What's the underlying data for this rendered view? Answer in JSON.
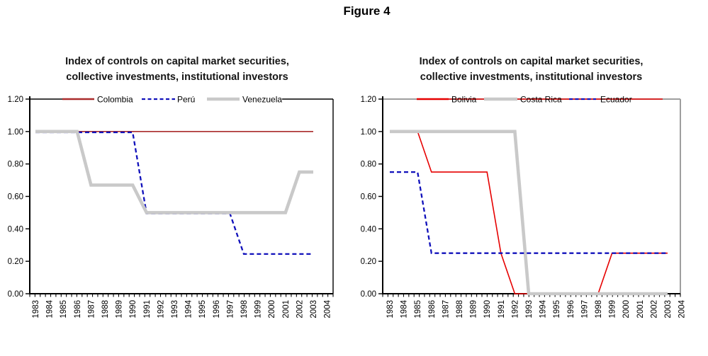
{
  "figure_title": "Figure 4",
  "colors": {
    "colombia": "#aa2b2b",
    "peru": "#1111bb",
    "venezuela": "#c9c9c9",
    "bolivia": "#e60000",
    "costa_rica": "#c9c9c9",
    "ecuador": "#1111bb",
    "left_frame": "#000000",
    "right_frame": "#9e9e9e",
    "axis": "#000000",
    "legend_strike_line": "#e60000"
  },
  "chart_data": [
    {
      "type": "line",
      "title": "Index of controls on capital market securities, collective investments, institutional investors",
      "title_lines": [
        "Index of controls on capital market securities,",
        "collective investments, institutional investors"
      ],
      "xlabel": "",
      "ylabel": "",
      "ylim": [
        0,
        1.2
      ],
      "y_tick_labels": [
        "0.00",
        "0.20",
        "0.40",
        "0.60",
        "0.80",
        "1.00",
        "1.20"
      ],
      "x_tick_labels": [
        "1983",
        "1984",
        "1985",
        "1986",
        "1987",
        "1988",
        "1989",
        "1990",
        "1991",
        "1992",
        "1993",
        "1994",
        "1995",
        "1996",
        "1997",
        "1998",
        "1999",
        "2000",
        "2001",
        "2002",
        "2003",
        "2004"
      ],
      "x_data_years": [
        "1983",
        "1984",
        "1985",
        "1986",
        "1987",
        "1988",
        "1989",
        "1990",
        "1991",
        "1992",
        "1993",
        "1994",
        "1995",
        "1996",
        "1997",
        "1998",
        "1999",
        "2000",
        "2001",
        "2002",
        "2003"
      ],
      "legend_position": "top-inside",
      "grid": false,
      "series": [
        {
          "name": "Colombia",
          "color": "#aa2b2b",
          "style": "solid",
          "width": 1.7,
          "values": [
            1,
            1,
            1,
            1,
            1,
            1,
            1,
            1,
            1,
            1,
            1,
            1,
            1,
            1,
            1,
            1,
            1,
            1,
            1,
            1,
            1
          ]
        },
        {
          "name": "Perú",
          "color": "#1111bb",
          "style": "dashed",
          "width": 2.3,
          "values": [
            1,
            1,
            1,
            1,
            1,
            1,
            1,
            1,
            0.5,
            0.5,
            0.5,
            0.5,
            0.5,
            0.5,
            0.5,
            0.25,
            0.25,
            0.25,
            0.25,
            0.25,
            0.25
          ]
        },
        {
          "name": "Venezuela",
          "color": "#c9c9c9",
          "style": "solid",
          "width": 4.6,
          "values": [
            1,
            1,
            1,
            1,
            0.67,
            0.67,
            0.67,
            0.67,
            0.5,
            0.5,
            0.5,
            0.5,
            0.5,
            0.5,
            0.5,
            0.5,
            0.5,
            0.5,
            0.5,
            0.75,
            0.75
          ]
        }
      ]
    },
    {
      "type": "line",
      "title": "Index of controls on capital market securities, collective investments, institutional investors",
      "title_lines": [
        "Index of controls on capital market securities,",
        "collective investments, institutional investors"
      ],
      "xlabel": "",
      "ylabel": "",
      "ylim": [
        0,
        1.2
      ],
      "y_tick_labels": [
        "0.00",
        "0.20",
        "0.40",
        "0.60",
        "0.80",
        "1.00",
        "1.20"
      ],
      "x_tick_labels": [
        "1983",
        "1984",
        "1985",
        "1986",
        "1987",
        "1988",
        "1989",
        "1990",
        "1991",
        "1992",
        "1993",
        "1994",
        "1995",
        "1996",
        "1997",
        "1998",
        "1999",
        "2000",
        "2001",
        "2002",
        "2003",
        "2004"
      ],
      "x_data_years": [
        "1983",
        "1984",
        "1985",
        "1986",
        "1987",
        "1988",
        "1989",
        "1990",
        "1991",
        "1992",
        "1993",
        "1994",
        "1995",
        "1996",
        "1997",
        "1998",
        "1999",
        "2000",
        "2001",
        "2002",
        "2003"
      ],
      "legend_position": "top-inside",
      "grid": false,
      "legend_strike_line_color": "#e60000",
      "series": [
        {
          "name": "Bolivia",
          "color": "#e60000",
          "style": "solid",
          "width": 1.6,
          "values": [
            1,
            1,
            1,
            0.75,
            0.75,
            0.75,
            0.75,
            0.75,
            0.25,
            0,
            0,
            0,
            0,
            0,
            0,
            0,
            0.25,
            0.25,
            0.25,
            0.25,
            0.25
          ]
        },
        {
          "name": "Costa Rica",
          "color": "#c9c9c9",
          "style": "solid",
          "width": 4.6,
          "values": [
            1,
            1,
            1,
            1,
            1,
            1,
            1,
            1,
            1,
            1,
            0,
            0,
            0,
            0,
            0,
            0,
            0,
            0,
            0,
            0,
            0
          ]
        },
        {
          "name": "Ecuador",
          "color": "#1111bb",
          "style": "dashed",
          "width": 2.3,
          "values": [
            0.75,
            0.75,
            0.75,
            0.25,
            0.25,
            0.25,
            0.25,
            0.25,
            0.25,
            0.25,
            0.25,
            0.25,
            0.25,
            0.25,
            0.25,
            0.25,
            0.25,
            0.25,
            0.25,
            0.25,
            0.25
          ]
        }
      ]
    }
  ]
}
